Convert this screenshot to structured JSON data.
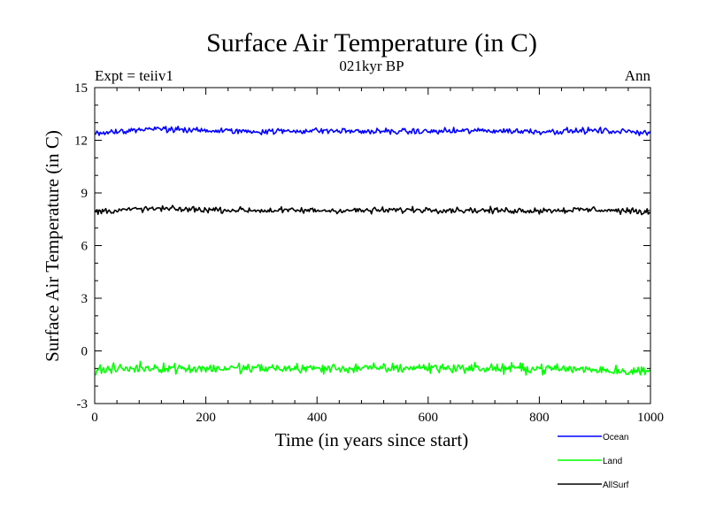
{
  "chart_data": {
    "type": "line",
    "title": "Surface Air Temperature (in C)",
    "subtitle": "021kyr BP",
    "left_label": "Expt = teiiv1",
    "right_label": "Ann",
    "xlabel": "Time (in years since start)",
    "ylabel": "Surface Air Temperature (in C)",
    "xlim": [
      0,
      1000
    ],
    "ylim": [
      -3,
      15
    ],
    "xticks": [
      0,
      200,
      400,
      600,
      800,
      1000
    ],
    "yticks": [
      -3,
      0,
      3,
      6,
      9,
      12,
      15
    ],
    "ytick_labels": [
      "-3",
      "0",
      "3",
      "6",
      "9",
      "12",
      "15"
    ],
    "grid": false,
    "legend_position": "below-right",
    "series": [
      {
        "name": "Ocean",
        "color": "#0000ff",
        "mean": 12.5,
        "variability": 0.12,
        "x": [
          0,
          100,
          200,
          300,
          400,
          500,
          600,
          700,
          800,
          900,
          1000
        ],
        "values": [
          12.4,
          12.65,
          12.55,
          12.5,
          12.55,
          12.5,
          12.5,
          12.55,
          12.5,
          12.55,
          12.45
        ]
      },
      {
        "name": "Land",
        "color": "#00ff00",
        "mean": -1.0,
        "variability": 0.2,
        "x": [
          0,
          100,
          200,
          300,
          400,
          500,
          600,
          700,
          800,
          900,
          1000
        ],
        "values": [
          -1.1,
          -0.95,
          -1.0,
          -1.0,
          -1.0,
          -1.0,
          -0.95,
          -1.0,
          -1.0,
          -1.05,
          -1.2
        ]
      },
      {
        "name": "AllSurf",
        "color": "#000000",
        "mean": 8.0,
        "variability": 0.12,
        "x": [
          0,
          100,
          200,
          300,
          400,
          500,
          600,
          700,
          800,
          900,
          1000
        ],
        "values": [
          7.95,
          8.1,
          8.05,
          8.0,
          8.0,
          8.0,
          8.05,
          8.0,
          8.0,
          8.05,
          7.9
        ]
      }
    ]
  }
}
